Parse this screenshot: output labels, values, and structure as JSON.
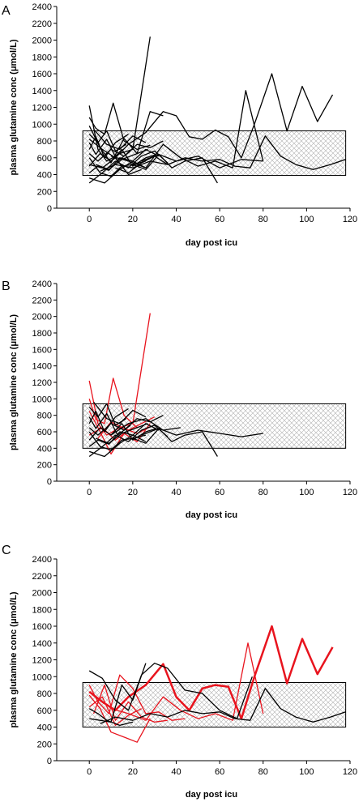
{
  "chart_data": [
    {
      "type": "line",
      "panel_label": "A",
      "xlabel": "day post icu",
      "ylabel": "plasma glutamine conc (μmol/L)",
      "xlim": [
        -15,
        120
      ],
      "ylim": [
        0,
        2400
      ],
      "xticks": [
        "0",
        "20",
        "40",
        "60",
        "80",
        "100",
        "120"
      ],
      "yticks": [
        "0",
        "200",
        "400",
        "600",
        "800",
        "1000",
        "1200",
        "1400",
        "1600",
        "1800",
        "2000",
        "2200",
        "2400"
      ],
      "reference_band": {
        "x": [
          -3,
          118
        ],
        "y": [
          390,
          920
        ],
        "hatched": true
      },
      "series": [
        {
          "color": "#000000",
          "x": [
            0,
            4,
            8,
            14,
            20,
            28
          ],
          "y": [
            1220,
            700,
            560,
            650,
            700,
            2040
          ]
        },
        {
          "color": "#000000",
          "x": [
            0,
            3,
            7,
            11,
            16,
            22,
            28
          ],
          "y": [
            1080,
            950,
            880,
            1250,
            800,
            700,
            750
          ]
        },
        {
          "color": "#000000",
          "x": [
            0,
            5,
            10,
            16,
            22,
            28,
            34
          ],
          "y": [
            980,
            720,
            540,
            830,
            650,
            1150,
            1100
          ]
        },
        {
          "color": "#000000",
          "x": [
            0,
            6,
            12,
            18,
            24
          ],
          "y": [
            520,
            480,
            600,
            400,
            460
          ]
        },
        {
          "color": "#000000",
          "x": [
            0,
            4,
            9,
            14,
            20,
            26,
            32
          ],
          "y": [
            420,
            500,
            450,
            600,
            560,
            700,
            620
          ]
        },
        {
          "color": "#000000",
          "x": [
            0,
            3,
            7,
            12,
            18
          ],
          "y": [
            700,
            850,
            600,
            780,
            880
          ]
        },
        {
          "color": "#000000",
          "x": [
            0,
            5,
            10,
            15,
            20,
            26
          ],
          "y": [
            600,
            420,
            380,
            500,
            520,
            560
          ]
        },
        {
          "color": "#000000",
          "x": [
            0,
            4,
            8,
            12,
            17
          ],
          "y": [
            880,
            780,
            920,
            680,
            760
          ]
        },
        {
          "color": "#000000",
          "x": [
            0,
            6,
            12,
            18,
            24,
            30,
            36
          ],
          "y": [
            300,
            420,
            560,
            480,
            620,
            680,
            540
          ]
        },
        {
          "color": "#000000",
          "x": [
            0,
            5,
            10,
            15,
            20,
            26,
            31
          ],
          "y": [
            500,
            650,
            560,
            700,
            500,
            600,
            640
          ]
        },
        {
          "color": "#000000",
          "x": [
            0,
            3,
            8,
            13,
            19
          ],
          "y": [
            780,
            640,
            820,
            560,
            680
          ]
        },
        {
          "color": "#000000",
          "x": [
            0,
            7,
            14,
            20,
            26
          ],
          "y": [
            360,
            300,
            460,
            560,
            480
          ]
        },
        {
          "color": "#000000",
          "x": [
            0,
            4,
            10,
            16,
            22,
            28,
            34
          ],
          "y": [
            650,
            560,
            700,
            620,
            760,
            720,
            800
          ]
        },
        {
          "color": "#000000",
          "x": [
            2,
            8,
            14,
            20,
            26
          ],
          "y": [
            940,
            760,
            700,
            860,
            780
          ]
        },
        {
          "color": "#000000",
          "x": [
            12,
            18,
            24,
            30,
            36
          ],
          "y": [
            480,
            420,
            540,
            620,
            520
          ]
        },
        {
          "color": "#000000",
          "x": [
            0,
            6,
            12,
            18,
            26,
            34,
            40,
            46,
            52,
            58,
            64,
            70,
            76,
            84,
            91,
            98,
            105,
            112
          ],
          "y": [
            820,
            700,
            600,
            760,
            900,
            1150,
            1100,
            850,
            820,
            930,
            850,
            600,
            1000,
            1600,
            920,
            1450,
            1030,
            1350
          ]
        },
        {
          "color": "#000000",
          "x": [
            5,
            12,
            20,
            28,
            36,
            44,
            52,
            60,
            67,
            74,
            81,
            88,
            95,
            103,
            111,
            118
          ],
          "y": [
            440,
            520,
            480,
            560,
            520,
            600,
            560,
            580,
            500,
            480,
            860,
            620,
            520,
            460,
            520,
            580
          ]
        },
        {
          "color": "#000000",
          "x": [
            10,
            18,
            26,
            34,
            42,
            50,
            58,
            66,
            72,
            80
          ],
          "y": [
            620,
            560,
            480,
            760,
            600,
            500,
            560,
            480,
            1400,
            560
          ]
        },
        {
          "color": "#000000",
          "x": [
            20,
            26,
            32,
            38,
            44,
            52,
            59
          ],
          "y": [
            520,
            460,
            640,
            480,
            560,
            600,
            300
          ]
        },
        {
          "color": "#000000",
          "x": [
            24,
            32,
            40,
            50,
            60,
            70,
            80
          ],
          "y": [
            560,
            640,
            560,
            620,
            480,
            580,
            560
          ]
        },
        {
          "color": "#000000",
          "x": [
            3,
            9,
            15,
            21,
            27
          ],
          "y": [
            520,
            460,
            580,
            640,
            700
          ]
        }
      ]
    },
    {
      "type": "line",
      "panel_label": "B",
      "xlabel": "day post icu",
      "ylabel": "plasma glutamine conc (μmol/L)",
      "xlim": [
        -15,
        120
      ],
      "ylim": [
        0,
        2400
      ],
      "xticks": [
        "0",
        "20",
        "40",
        "60",
        "80",
        "100",
        "120"
      ],
      "yticks": [
        "0",
        "200",
        "400",
        "600",
        "800",
        "1000",
        "1200",
        "1400",
        "1600",
        "1800",
        "2000",
        "2200",
        "2400"
      ],
      "reference_band": {
        "x": [
          -3,
          118
        ],
        "y": [
          400,
          940
        ],
        "hatched": true
      },
      "series": [
        {
          "color": "#e8141e",
          "x": [
            0,
            4,
            8,
            14,
            20,
            28
          ],
          "y": [
            1220,
            700,
            560,
            650,
            700,
            2040
          ]
        },
        {
          "color": "#e8141e",
          "x": [
            0,
            3,
            7,
            11,
            16,
            22
          ],
          "y": [
            1000,
            750,
            700,
            1250,
            800,
            650
          ]
        },
        {
          "color": "#e8141e",
          "x": [
            0,
            5,
            10,
            16,
            22,
            28
          ],
          "y": [
            850,
            600,
            330,
            580,
            480,
            700
          ]
        },
        {
          "color": "#e8141e",
          "x": [
            0,
            6,
            12,
            18,
            24,
            30
          ],
          "y": [
            560,
            650,
            500,
            620,
            700,
            780
          ]
        },
        {
          "color": "#e8141e",
          "x": [
            4,
            10,
            16,
            22,
            28
          ],
          "y": [
            520,
            720,
            640,
            580,
            660
          ]
        },
        {
          "color": "#000000",
          "x": [
            0,
            4,
            9,
            14,
            20,
            26,
            32
          ],
          "y": [
            420,
            500,
            450,
            600,
            560,
            700,
            620
          ]
        },
        {
          "color": "#000000",
          "x": [
            0,
            3,
            7,
            12,
            18
          ],
          "y": [
            700,
            850,
            600,
            780,
            880
          ]
        },
        {
          "color": "#000000",
          "x": [
            0,
            5,
            10,
            15,
            20,
            26
          ],
          "y": [
            600,
            420,
            380,
            500,
            520,
            560
          ]
        },
        {
          "color": "#000000",
          "x": [
            0,
            4,
            8,
            12,
            17
          ],
          "y": [
            900,
            780,
            940,
            680,
            760
          ]
        },
        {
          "color": "#000000",
          "x": [
            0,
            6,
            12,
            18,
            24,
            30,
            36
          ],
          "y": [
            300,
            420,
            560,
            480,
            620,
            680,
            540
          ]
        },
        {
          "color": "#000000",
          "x": [
            0,
            5,
            10,
            15,
            20,
            26,
            31
          ],
          "y": [
            500,
            650,
            560,
            700,
            500,
            600,
            640
          ]
        },
        {
          "color": "#000000",
          "x": [
            0,
            3,
            8,
            13,
            19
          ],
          "y": [
            780,
            640,
            820,
            560,
            680
          ]
        },
        {
          "color": "#000000",
          "x": [
            0,
            7,
            14,
            20,
            26
          ],
          "y": [
            360,
            300,
            460,
            560,
            480
          ]
        },
        {
          "color": "#000000",
          "x": [
            0,
            4,
            10,
            16,
            22,
            28,
            34
          ],
          "y": [
            650,
            560,
            700,
            620,
            760,
            720,
            800
          ]
        },
        {
          "color": "#000000",
          "x": [
            2,
            8,
            14,
            20,
            26
          ],
          "y": [
            960,
            760,
            700,
            860,
            780
          ]
        },
        {
          "color": "#000000",
          "x": [
            20,
            26,
            32,
            38,
            44,
            52,
            59
          ],
          "y": [
            520,
            460,
            640,
            480,
            560,
            600,
            300
          ]
        },
        {
          "color": "#000000",
          "x": [
            24,
            32,
            40,
            50,
            60,
            70,
            80
          ],
          "y": [
            560,
            640,
            560,
            620,
            580,
            540,
            580
          ]
        },
        {
          "color": "#000000",
          "x": [
            10,
            18,
            26,
            34,
            42
          ],
          "y": [
            560,
            700,
            760,
            620,
            650
          ]
        },
        {
          "color": "#000000",
          "x": [
            3,
            9,
            15,
            21,
            27
          ],
          "y": [
            520,
            460,
            580,
            640,
            700
          ]
        }
      ]
    },
    {
      "type": "line",
      "panel_label": "C",
      "xlabel": "day post icu",
      "ylabel": "plasma glutamine conc (μmol/L)",
      "xlim": [
        -15,
        120
      ],
      "ylim": [
        0,
        2400
      ],
      "xticks": [
        "0",
        "20",
        "40",
        "60",
        "80",
        "100",
        "120"
      ],
      "yticks": [
        "0",
        "200",
        "400",
        "600",
        "800",
        "1000",
        "1200",
        "1400",
        "1600",
        "1800",
        "2000",
        "2200",
        "2400"
      ],
      "reference_band": {
        "x": [
          -3,
          118
        ],
        "y": [
          400,
          930
        ],
        "hatched": true
      },
      "series": [
        {
          "color": "#e8141e",
          "width": 2.5,
          "x": [
            0,
            6,
            12,
            18,
            26,
            34,
            40,
            46,
            52,
            58,
            64,
            70,
            76,
            84,
            91,
            98,
            105,
            112
          ],
          "y": [
            820,
            700,
            600,
            760,
            900,
            1150,
            760,
            600,
            860,
            900,
            880,
            500,
            1000,
            1600,
            920,
            1450,
            1030,
            1350
          ]
        },
        {
          "color": "#e8141e",
          "x": [
            0,
            5,
            10,
            16,
            22,
            28
          ],
          "y": [
            780,
            620,
            340,
            280,
            220,
            500
          ]
        },
        {
          "color": "#e8141e",
          "x": [
            0,
            4,
            9,
            14,
            20,
            26,
            32,
            38,
            44
          ],
          "y": [
            900,
            700,
            560,
            1020,
            860,
            560,
            580,
            480,
            500
          ]
        },
        {
          "color": "#e8141e",
          "x": [
            2,
            7,
            12,
            18,
            24,
            30,
            36
          ],
          "y": [
            560,
            900,
            480,
            700,
            520,
            460,
            480
          ]
        },
        {
          "color": "#e8141e",
          "x": [
            10,
            18,
            26,
            34,
            42,
            50,
            58,
            66,
            73,
            80
          ],
          "y": [
            620,
            560,
            480,
            760,
            600,
            500,
            560,
            480,
            1400,
            560
          ]
        },
        {
          "color": "#e8141e",
          "x": [
            0,
            6,
            12,
            18,
            24
          ],
          "y": [
            640,
            760,
            420,
            540,
            620
          ]
        },
        {
          "color": "#000000",
          "x": [
            0,
            6,
            12,
            18,
            24,
            30,
            36,
            44,
            52,
            60,
            68,
            75
          ],
          "y": [
            1070,
            980,
            720,
            600,
            1020,
            1160,
            1100,
            840,
            800,
            600,
            500,
            1000
          ]
        },
        {
          "color": "#000000",
          "x": [
            5,
            12,
            20,
            28,
            36,
            44,
            52,
            60,
            67,
            74,
            81,
            88,
            95,
            103,
            111,
            118
          ],
          "y": [
            440,
            520,
            480,
            560,
            520,
            600,
            560,
            580,
            500,
            480,
            860,
            620,
            520,
            460,
            520,
            580
          ]
        },
        {
          "color": "#000000",
          "x": [
            0,
            5,
            10,
            15,
            20,
            26
          ],
          "y": [
            500,
            480,
            460,
            900,
            720,
            1160
          ]
        },
        {
          "color": "#000000",
          "x": [
            0,
            4,
            8,
            14,
            20
          ],
          "y": [
            620,
            560,
            480,
            420,
            460
          ]
        }
      ]
    }
  ]
}
